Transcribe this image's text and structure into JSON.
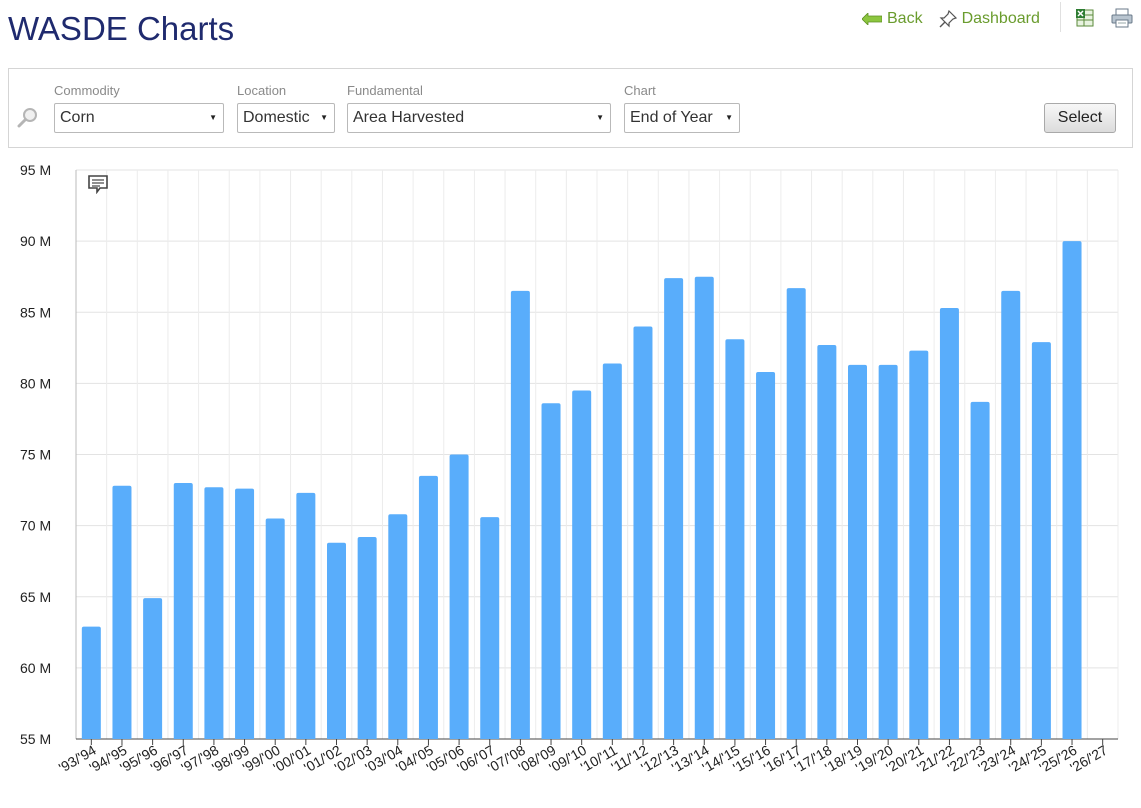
{
  "page": {
    "title": "WASDE Charts"
  },
  "nav": {
    "back_label": "Back",
    "dashboard_label": "Dashboard",
    "icons": [
      "back-arrow-icon",
      "pin-icon",
      "excel-export-icon",
      "print-icon"
    ]
  },
  "filters": {
    "commodity": {
      "label": "Commodity",
      "value": "Corn"
    },
    "location": {
      "label": "Location",
      "value": "Domestic"
    },
    "fundamental": {
      "label": "Fundamental",
      "value": "Area Harvested"
    },
    "chart": {
      "label": "Chart",
      "value": "End of Year"
    },
    "select_button": "Select"
  },
  "colors": {
    "bar": "#59adfb",
    "title": "#1f2a6e",
    "link": "#6a9c2e"
  },
  "chart_data": {
    "type": "bar",
    "title": "",
    "xlabel": "",
    "ylabel": "",
    "ylim": [
      55,
      95
    ],
    "y_ticks": [
      55,
      60,
      65,
      70,
      75,
      80,
      85,
      90,
      95
    ],
    "y_tick_labels": [
      "55 M",
      "60 M",
      "65 M",
      "70 M",
      "75 M",
      "80 M",
      "85 M",
      "90 M",
      "95 M"
    ],
    "grid": true,
    "categories": [
      "'93/'94",
      "'94/'95",
      "'95/'96",
      "'96/'97",
      "'97/'98",
      "'98/'99",
      "'99/'00",
      "'00/'01",
      "'01/'02",
      "'02/'03",
      "'03/'04",
      "'04/'05",
      "'05/'06",
      "'06/'07",
      "'07/'08",
      "'08/'09",
      "'09/'10",
      "'10/'11",
      "'11/'12",
      "'12/'13",
      "'13/'14",
      "'14/'15",
      "'15/'16",
      "'16/'17",
      "'17/'18",
      "'18/'19",
      "'19/'20",
      "'20/'21",
      "'21/'22",
      "'22/'23",
      "'23/'24",
      "'24/'25",
      "'25/'26",
      "'26/'27"
    ],
    "values": [
      62.9,
      72.8,
      64.9,
      73.0,
      72.7,
      72.6,
      70.5,
      72.3,
      68.8,
      69.2,
      70.8,
      73.5,
      75.0,
      70.6,
      86.5,
      78.6,
      79.5,
      81.4,
      84.0,
      87.4,
      87.5,
      83.1,
      80.8,
      86.7,
      82.7,
      81.3,
      81.3,
      82.3,
      85.3,
      78.7,
      86.5,
      82.9,
      90.0,
      null
    ],
    "unit": "M"
  }
}
